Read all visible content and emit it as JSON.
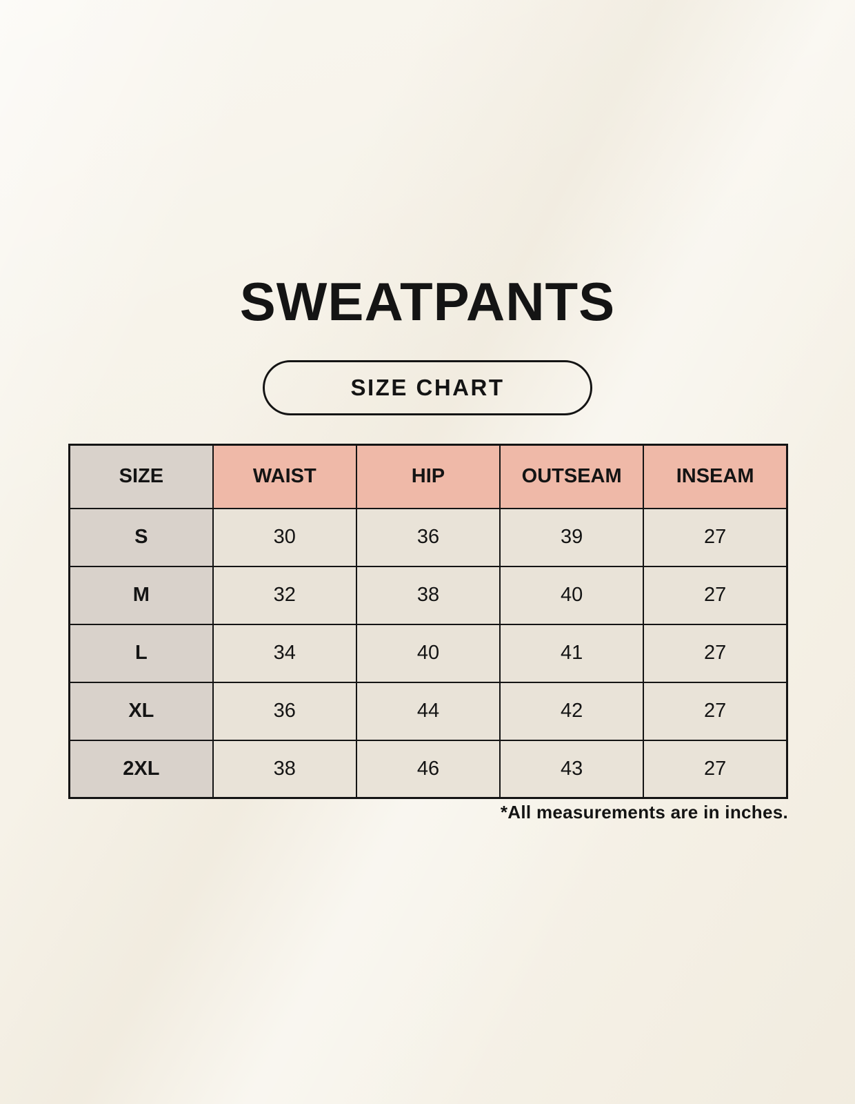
{
  "header": {
    "title": "SWEATPANTS",
    "badge_label": "SIZE CHART"
  },
  "footnote": "*All measurements are in inches.",
  "colors": {
    "background": "#f6f2e8",
    "header_pink": "#efb9a8",
    "size_col_grey": "#d9d2cb",
    "cell_beige": "#e9e3d8",
    "line": "#141414",
    "text": "#141414"
  },
  "chart_data": {
    "type": "table",
    "title": "SWEATPANTS SIZE CHART",
    "units": "inches",
    "columns": [
      "SIZE",
      "WAIST",
      "HIP",
      "OUTSEAM",
      "INSEAM"
    ],
    "rows": [
      [
        "S",
        "30",
        "36",
        "39",
        "27"
      ],
      [
        "M",
        "32",
        "38",
        "40",
        "27"
      ],
      [
        "L",
        "34",
        "40",
        "41",
        "27"
      ],
      [
        "XL",
        "36",
        "44",
        "42",
        "27"
      ],
      [
        "2XL",
        "38",
        "46",
        "43",
        "27"
      ]
    ]
  }
}
